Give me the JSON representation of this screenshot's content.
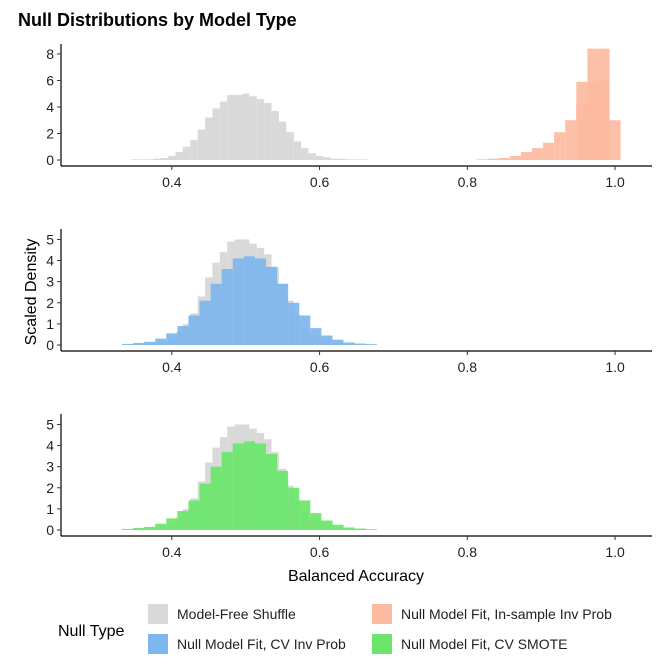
{
  "chart_data": {
    "type": "histogram",
    "title": "Null Distributions by Model Type",
    "xlabel": "Balanced Accuracy",
    "ylabel": "Scaled Density",
    "xlim": [
      0.25,
      1.05
    ],
    "x_ticks": [
      0.4,
      0.6,
      0.8,
      1.0
    ],
    "x_tick_labels": [
      "0.4",
      "0.6",
      "0.8",
      "1.0"
    ],
    "colors": {
      "Model-Free Shuffle": "#d9d9d9",
      "Null Model Fit, In-sample Inv Prob": "#fcbba1",
      "Null Model Fit, CV Inv Prob": "#7eb6ee",
      "Null Model Fit, CV SMOTE": "#6ae66a"
    },
    "legend": {
      "title": "Null Type",
      "position": "bottom",
      "entries": [
        {
          "label": "Model-Free Shuffle",
          "color_key": "Model-Free Shuffle"
        },
        {
          "label": "Null Model Fit, In-sample Inv Prob",
          "color_key": "Null Model Fit, In-sample Inv Prob"
        },
        {
          "label": "Null Model Fit, CV Inv Prob",
          "color_key": "Null Model Fit, CV Inv Prob"
        },
        {
          "label": "Null Model Fit, CV SMOTE",
          "color_key": "Null Model Fit, CV SMOTE"
        }
      ]
    },
    "panels": [
      {
        "y_ticks": [
          0,
          2,
          4,
          6,
          8
        ],
        "ylim": [
          0,
          8.6
        ],
        "series": [
          {
            "name": "Model-Free Shuffle",
            "bin_width": 0.01,
            "x": [
              0.35,
              0.36,
              0.37,
              0.38,
              0.39,
              0.4,
              0.41,
              0.42,
              0.43,
              0.44,
              0.45,
              0.46,
              0.47,
              0.48,
              0.49,
              0.5,
              0.51,
              0.52,
              0.53,
              0.54,
              0.55,
              0.56,
              0.57,
              0.58,
              0.59,
              0.6,
              0.61,
              0.62,
              0.63,
              0.64,
              0.65,
              0.66
            ],
            "values": [
              0.05,
              0.05,
              0.05,
              0.1,
              0.15,
              0.3,
              0.6,
              1.0,
              1.5,
              2.3,
              3.2,
              3.9,
              4.4,
              4.9,
              4.9,
              5.0,
              4.8,
              4.6,
              4.3,
              3.7,
              2.9,
              2.1,
              1.4,
              0.9,
              0.5,
              0.3,
              0.2,
              0.1,
              0.1,
              0.05,
              0.05,
              0.05
            ]
          },
          {
            "name": "Null Model Fit, In-sample Inv Prob",
            "bin_width": 0.015,
            "x": [
              0.82,
              0.835,
              0.85,
              0.865,
              0.88,
              0.895,
              0.91,
              0.925,
              0.94,
              0.955,
              0.97,
              0.985,
              1.0
            ],
            "values": [
              0.05,
              0.1,
              0.15,
              0.3,
              0.6,
              0.9,
              1.3,
              2.1,
              3.0,
              4.2,
              5.9,
              6.0,
              3.0
            ]
          },
          {
            "name": "Null Model Fit, In-sample Inv Prob",
            "bin_width": 0.015,
            "x": [
              0.955,
              0.97,
              0.985
            ],
            "values": [
              5.9,
              8.4,
              8.4
            ]
          }
        ]
      },
      {
        "y_ticks": [
          0,
          1,
          2,
          3,
          4,
          5
        ],
        "ylim": [
          0,
          5.4
        ],
        "series": [
          {
            "name": "Model-Free Shuffle",
            "bin_width": 0.01,
            "x": [
              0.35,
              0.36,
              0.37,
              0.38,
              0.39,
              0.4,
              0.41,
              0.42,
              0.43,
              0.44,
              0.45,
              0.46,
              0.47,
              0.48,
              0.49,
              0.5,
              0.51,
              0.52,
              0.53,
              0.54,
              0.55,
              0.56,
              0.57,
              0.58,
              0.59,
              0.6,
              0.61,
              0.62,
              0.63,
              0.64,
              0.65,
              0.66
            ],
            "values": [
              0.05,
              0.05,
              0.05,
              0.1,
              0.15,
              0.3,
              0.6,
              1.0,
              1.5,
              2.3,
              3.2,
              3.9,
              4.4,
              4.9,
              5.0,
              5.0,
              4.8,
              4.6,
              4.3,
              3.7,
              2.9,
              2.1,
              1.4,
              0.9,
              0.5,
              0.3,
              0.2,
              0.1,
              0.1,
              0.05,
              0.05,
              0.05
            ]
          },
          {
            "name": "Null Model Fit, CV Inv Prob",
            "bin_width": 0.015,
            "x": [
              0.34,
              0.355,
              0.37,
              0.385,
              0.4,
              0.415,
              0.43,
              0.445,
              0.46,
              0.475,
              0.49,
              0.505,
              0.52,
              0.535,
              0.55,
              0.565,
              0.58,
              0.595,
              0.61,
              0.625,
              0.64,
              0.655,
              0.67
            ],
            "values": [
              0.05,
              0.1,
              0.15,
              0.3,
              0.55,
              0.9,
              1.4,
              2.1,
              2.9,
              3.6,
              4.1,
              4.2,
              4.1,
              3.7,
              2.9,
              2.0,
              1.4,
              0.8,
              0.45,
              0.25,
              0.12,
              0.07,
              0.04
            ]
          }
        ]
      },
      {
        "y_ticks": [
          0,
          1,
          2,
          3,
          4,
          5
        ],
        "ylim": [
          0,
          5.4
        ],
        "series": [
          {
            "name": "Model-Free Shuffle",
            "bin_width": 0.01,
            "x": [
              0.35,
              0.36,
              0.37,
              0.38,
              0.39,
              0.4,
              0.41,
              0.42,
              0.43,
              0.44,
              0.45,
              0.46,
              0.47,
              0.48,
              0.49,
              0.5,
              0.51,
              0.52,
              0.53,
              0.54,
              0.55,
              0.56,
              0.57,
              0.58,
              0.59,
              0.6,
              0.61,
              0.62,
              0.63,
              0.64,
              0.65,
              0.66
            ],
            "values": [
              0.05,
              0.05,
              0.05,
              0.1,
              0.15,
              0.3,
              0.6,
              1.0,
              1.5,
              2.3,
              3.2,
              3.9,
              4.4,
              4.9,
              5.0,
              5.0,
              4.8,
              4.6,
              4.3,
              3.7,
              2.9,
              2.1,
              1.4,
              0.9,
              0.5,
              0.3,
              0.2,
              0.1,
              0.1,
              0.05,
              0.05,
              0.05
            ]
          },
          {
            "name": "Null Model Fit, CV SMOTE",
            "bin_width": 0.015,
            "x": [
              0.34,
              0.355,
              0.37,
              0.385,
              0.4,
              0.415,
              0.43,
              0.445,
              0.46,
              0.475,
              0.49,
              0.505,
              0.52,
              0.535,
              0.55,
              0.565,
              0.58,
              0.595,
              0.61,
              0.625,
              0.64,
              0.655,
              0.67
            ],
            "values": [
              0.05,
              0.1,
              0.15,
              0.3,
              0.55,
              0.9,
              1.4,
              2.2,
              3.0,
              3.7,
              4.1,
              4.2,
              4.1,
              3.6,
              2.8,
              2.0,
              1.4,
              0.8,
              0.45,
              0.25,
              0.12,
              0.07,
              0.04
            ]
          }
        ]
      }
    ]
  }
}
